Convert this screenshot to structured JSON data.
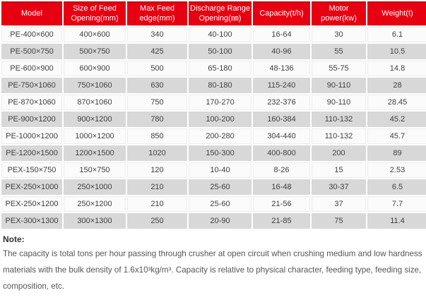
{
  "colors": {
    "header_bg": "#e60012",
    "header_border": "#c30000",
    "row_odd": "#fbfbfb",
    "row_even": "#d8d8d8"
  },
  "table": {
    "columns": [
      "Model",
      "Size of Feed Opening(mm)",
      "Max Feed edge(mm)",
      "Discharge Range Opening(㎜)",
      "Capacity(t/h)",
      "Motor power(kw)",
      "Weight(t)"
    ],
    "rows": [
      [
        "PE-400×600",
        "400×600",
        "340",
        "40-100",
        "16-64",
        "30",
        "6.1"
      ],
      [
        "PE-500×750",
        "500×750",
        "425",
        "50-100",
        "40-96",
        "55",
        "10.5"
      ],
      [
        "PE-600×900",
        "600×900",
        "500",
        "65-180",
        "48-136",
        "55-75",
        "14.8"
      ],
      [
        "PE-750×1060",
        "750×1060",
        "630",
        "80-180",
        "115-240",
        "90-110",
        "28"
      ],
      [
        "PE-870×1060",
        "870×1060",
        "750",
        "170-270",
        "232-376",
        "90-110",
        "28.45"
      ],
      [
        "PE-900×1200",
        "900×1200",
        "780",
        "100-200",
        "160-384",
        "110-132",
        "45.2"
      ],
      [
        "PE-1000×1200",
        "1000×1200",
        "850",
        "200-280",
        "304-440",
        "110-132",
        "45.7"
      ],
      [
        "PE-1200×1500",
        "1200×1500",
        "1020",
        "150-300",
        "400-800",
        "200",
        "89"
      ],
      [
        "PEX-150×750",
        "150×750",
        "120",
        "10-40",
        "8-26",
        "15",
        "2.53"
      ],
      [
        "PEX-250×1000",
        "250×1000",
        "210",
        "25-60",
        "16-48",
        "30-37",
        "6.5"
      ],
      [
        "PEX-250×1200",
        "250×1200",
        "210",
        "25-60",
        "21-56",
        "37",
        "7.7"
      ],
      [
        "PEX-300×1300",
        "300×1300",
        "250",
        "20-90",
        "21-85",
        "75",
        "11.4"
      ]
    ]
  },
  "note": {
    "label": "Note:",
    "text": "The capacity is total tons per hour passing through crusher at open circuit when crushing medium and low hardness materials with the bulk density of 1.6x10³kg/m³. Capacity is relative to physical character, feeding type, feeding size, composition, etc."
  }
}
